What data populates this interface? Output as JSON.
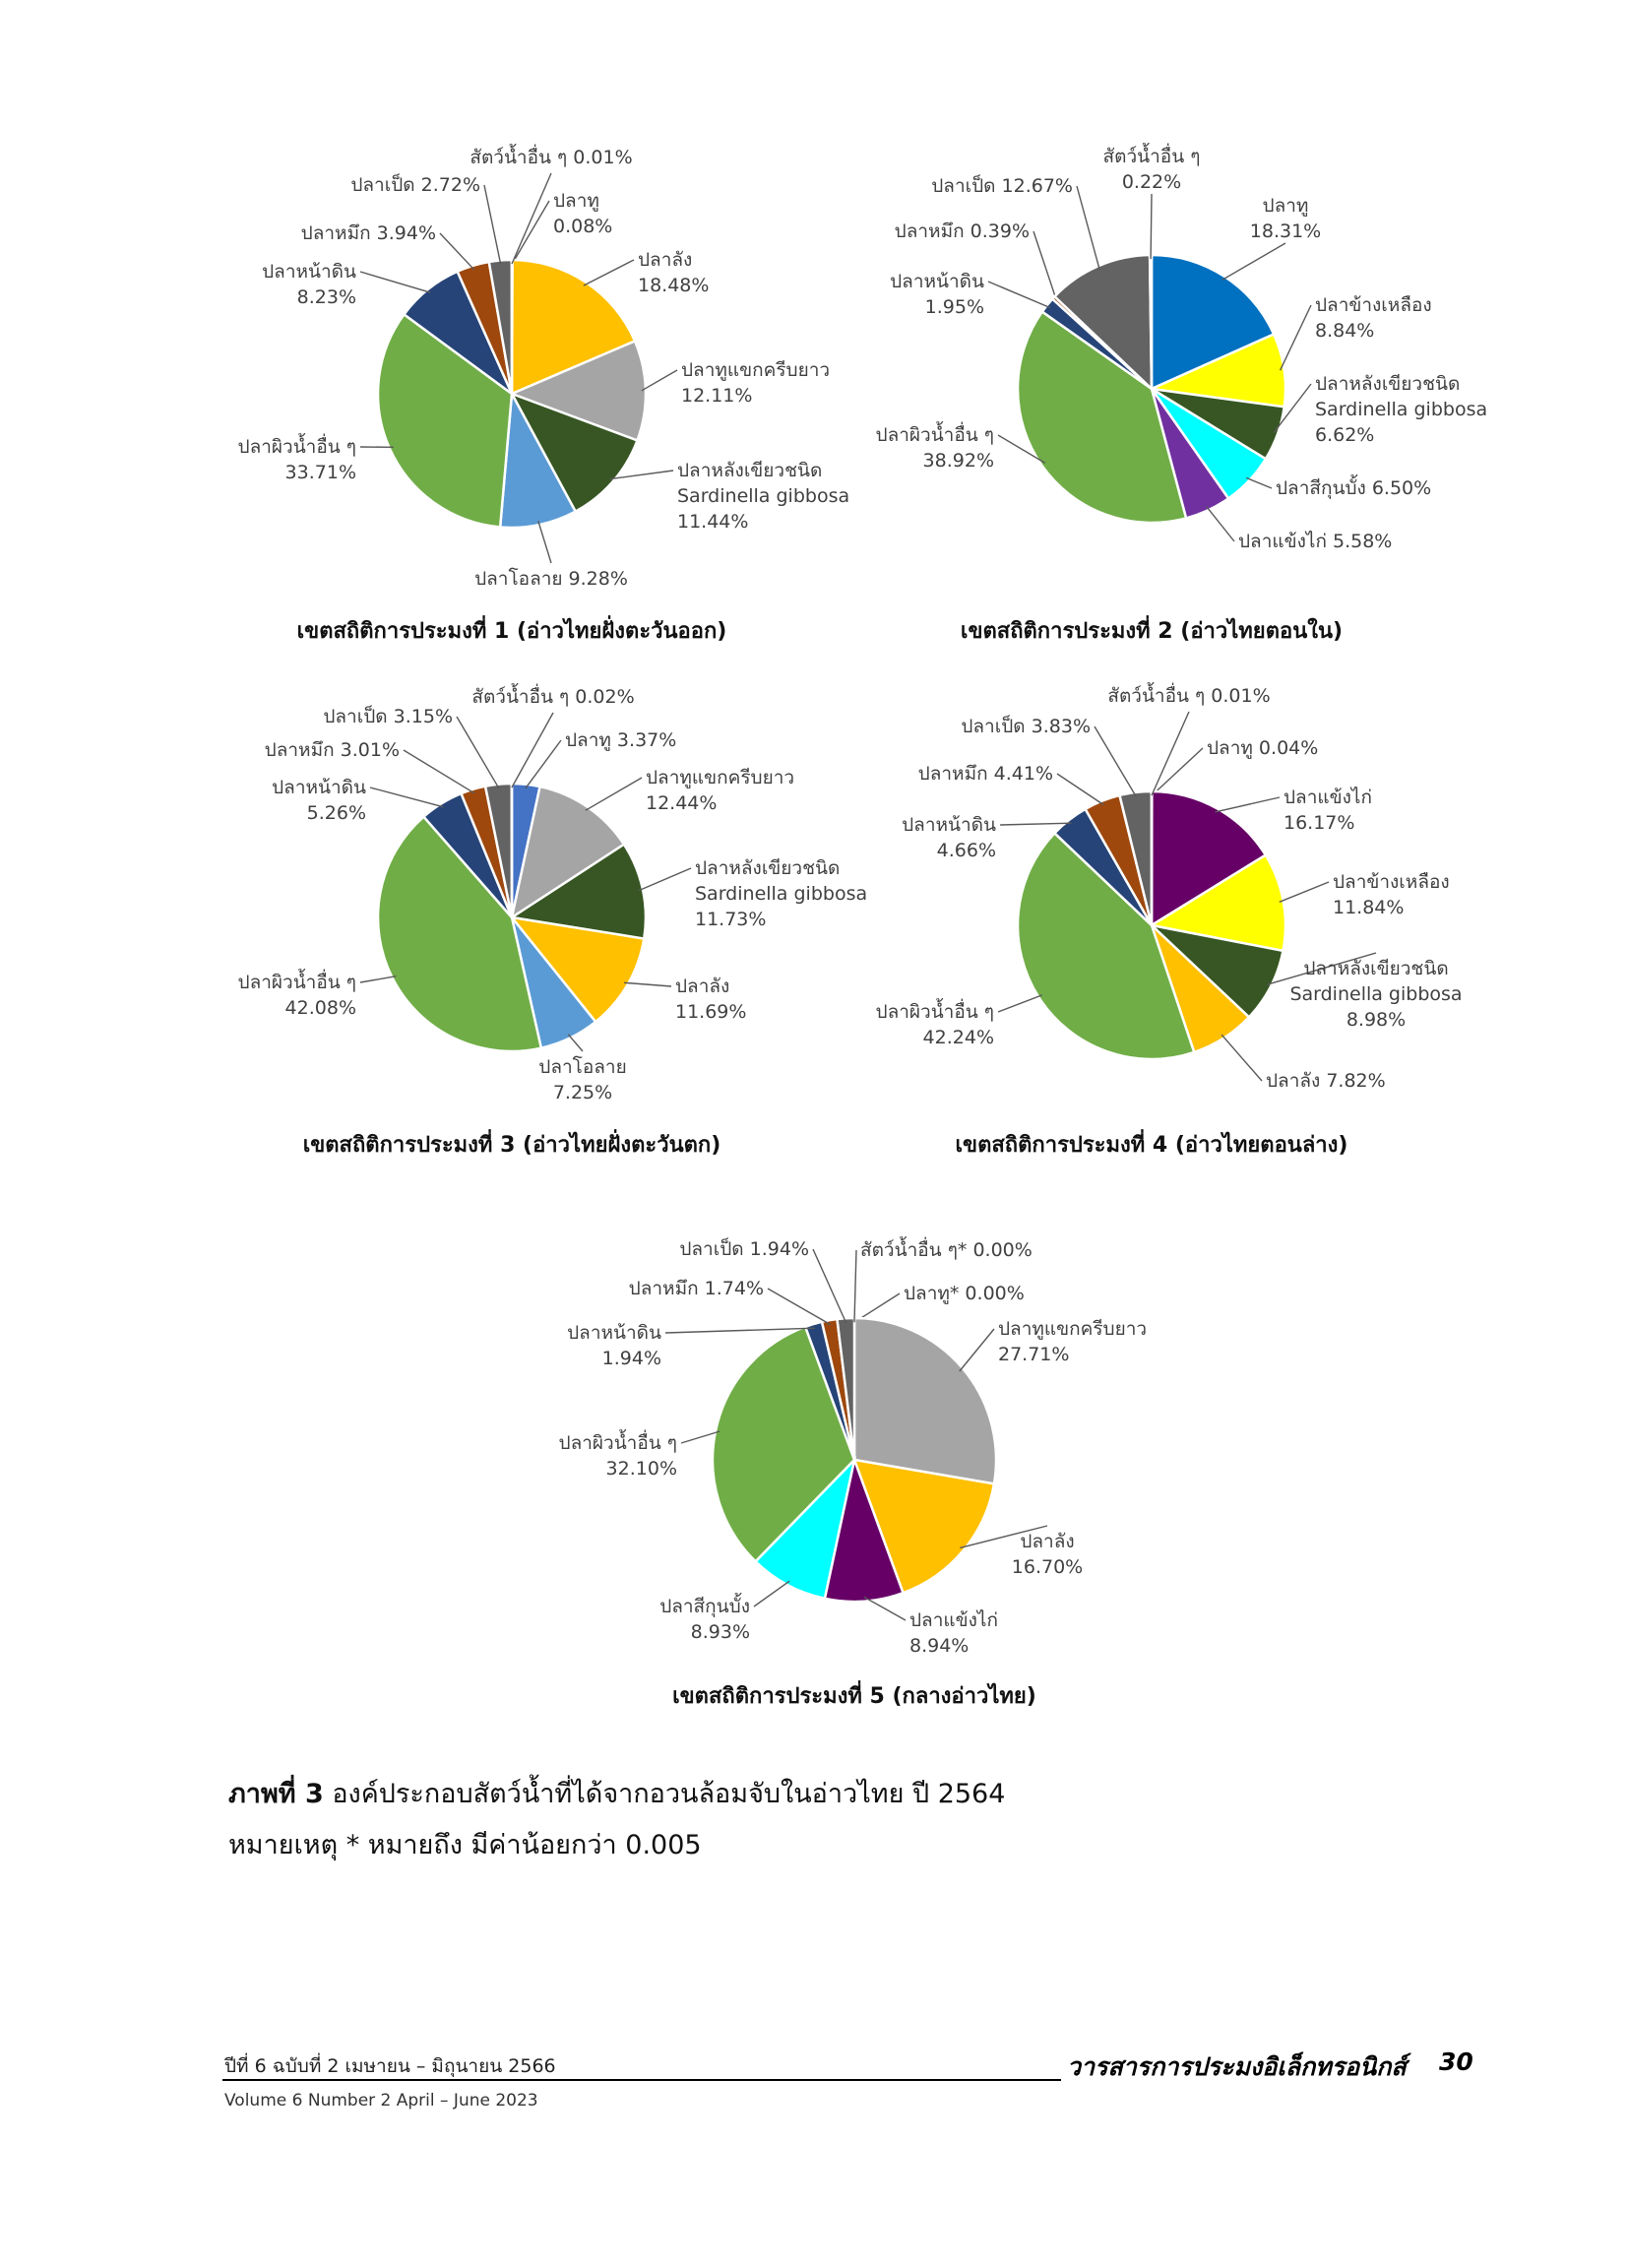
{
  "chart_data": [
    {
      "type": "pie",
      "title": "เขตสถิติการประมงที่ 1 (อ่าวไทยฝั่งตะวันออก)",
      "slices": [
        {
          "label": "ปลาทู",
          "value": 0.08,
          "pct": "0.08%",
          "color": "#4472C4"
        },
        {
          "label": "ปลาลัง",
          "value": 18.48,
          "pct": "18.48%",
          "color": "#FFC000"
        },
        {
          "label": "ปลาทูแขกครีบยาว",
          "value": 12.11,
          "pct": "12.11%",
          "color": "#A5A5A5"
        },
        {
          "label": "ปลาหลังเขียวชนิด Sardinella gibbosa",
          "value": 11.44,
          "pct": "11.44%",
          "color": "#375623"
        },
        {
          "label": "ปลาโอลาย",
          "value": 9.28,
          "pct": "9.28%",
          "color": "#5B9BD5"
        },
        {
          "label": "ปลาผิวน้ำอื่น ๆ",
          "value": 33.71,
          "pct": "33.71%",
          "color": "#70AD47"
        },
        {
          "label": "ปลาหน้าดิน",
          "value": 8.23,
          "pct": "8.23%",
          "color": "#264478"
        },
        {
          "label": "ปลาหมึก",
          "value": 3.94,
          "pct": "3.94%",
          "color": "#9E480E"
        },
        {
          "label": "ปลาเป็ด",
          "value": 2.72,
          "pct": "2.72%",
          "color": "#636363"
        },
        {
          "label": "สัตว์น้ำอื่น ๆ",
          "value": 0.01,
          "pct": "0.01%",
          "color": "#997300"
        }
      ]
    },
    {
      "type": "pie",
      "title": "เขตสถิติการประมงที่ 2 (อ่าวไทยตอนใน)",
      "slices": [
        {
          "label": "ปลาทู",
          "value": 18.31,
          "pct": "18.31%",
          "color": "#0070C0"
        },
        {
          "label": "ปลาข้างเหลือง",
          "value": 8.84,
          "pct": "8.84%",
          "color": "#FFFF00"
        },
        {
          "label": "ปลาหลังเขียวชนิด Sardinella gibbosa",
          "value": 6.62,
          "pct": "6.62%",
          "color": "#375623"
        },
        {
          "label": "ปลาสีกุนบั้ง",
          "value": 6.5,
          "pct": "6.50%",
          "color": "#00FFFF"
        },
        {
          "label": "ปลาแข้งไก่",
          "value": 5.58,
          "pct": "5.58%",
          "color": "#7030A0"
        },
        {
          "label": "ปลาผิวน้ำอื่น ๆ",
          "value": 38.92,
          "pct": "38.92%",
          "color": "#70AD47"
        },
        {
          "label": "ปลาหน้าดิน",
          "value": 1.95,
          "pct": "1.95%",
          "color": "#264478"
        },
        {
          "label": "ปลาหมึก",
          "value": 0.39,
          "pct": "0.39%",
          "color": "#9E480E"
        },
        {
          "label": "ปลาเป็ด",
          "value": 12.67,
          "pct": "12.67%",
          "color": "#636363"
        },
        {
          "label": "สัตว์น้ำอื่น ๆ",
          "value": 0.22,
          "pct": "0.22%",
          "color": "#997300"
        }
      ]
    },
    {
      "type": "pie",
      "title": "เขตสถิติการประมงที่ 3 (อ่าวไทยฝั่งตะวันตก)",
      "slices": [
        {
          "label": "ปลาทู",
          "value": 3.37,
          "pct": "3.37%",
          "color": "#4472C4"
        },
        {
          "label": "ปลาทูแขกครีบยาว",
          "value": 12.44,
          "pct": "12.44%",
          "color": "#A5A5A5"
        },
        {
          "label": "ปลาหลังเขียวชนิด Sardinella gibbosa",
          "value": 11.73,
          "pct": "11.73%",
          "color": "#375623"
        },
        {
          "label": "ปลาลัง",
          "value": 11.69,
          "pct": "11.69%",
          "color": "#FFC000"
        },
        {
          "label": "ปลาโอลาย",
          "value": 7.25,
          "pct": "7.25%",
          "color": "#5B9BD5"
        },
        {
          "label": "ปลาผิวน้ำอื่น ๆ",
          "value": 42.08,
          "pct": "42.08%",
          "color": "#70AD47"
        },
        {
          "label": "ปลาหน้าดิน",
          "value": 5.26,
          "pct": "5.26%",
          "color": "#264478"
        },
        {
          "label": "ปลาหมึก",
          "value": 3.01,
          "pct": "3.01%",
          "color": "#9E480E"
        },
        {
          "label": "ปลาเป็ด",
          "value": 3.15,
          "pct": "3.15%",
          "color": "#636363"
        },
        {
          "label": "สัตว์น้ำอื่น ๆ",
          "value": 0.02,
          "pct": "0.02%",
          "color": "#997300"
        }
      ]
    },
    {
      "type": "pie",
      "title": "เขตสถิติการประมงที่ 4 (อ่าวไทยตอนล่าง)",
      "slices": [
        {
          "label": "ปลาทู",
          "value": 0.04,
          "pct": "0.04%",
          "color": "#4472C4"
        },
        {
          "label": "ปลาแข้งไก่",
          "value": 16.17,
          "pct": "16.17%",
          "color": "#660066"
        },
        {
          "label": "ปลาข้างเหลือง",
          "value": 11.84,
          "pct": "11.84%",
          "color": "#FFFF00"
        },
        {
          "label": "ปลาหลังเขียวชนิด Sardinella gibbosa",
          "value": 8.98,
          "pct": "8.98%",
          "color": "#375623"
        },
        {
          "label": "ปลาลัง",
          "value": 7.82,
          "pct": "7.82%",
          "color": "#FFC000"
        },
        {
          "label": "ปลาผิวน้ำอื่น ๆ",
          "value": 42.24,
          "pct": "42.24%",
          "color": "#70AD47"
        },
        {
          "label": "ปลาหน้าดิน",
          "value": 4.66,
          "pct": "4.66%",
          "color": "#264478"
        },
        {
          "label": "ปลาหมึก",
          "value": 4.41,
          "pct": "4.41%",
          "color": "#9E480E"
        },
        {
          "label": "ปลาเป็ด",
          "value": 3.83,
          "pct": "3.83%",
          "color": "#636363"
        },
        {
          "label": "สัตว์น้ำอื่น ๆ",
          "value": 0.01,
          "pct": "0.01%",
          "color": "#997300"
        }
      ]
    },
    {
      "type": "pie",
      "title": "เขตสถิติการประมงที่ 5 (กลางอ่าวไทย)",
      "slices": [
        {
          "label": "ปลาทู*",
          "value": 0.0,
          "pct": "0.00%",
          "color": "#4472C4"
        },
        {
          "label": "ปลาทูแขกครีบยาว",
          "value": 27.71,
          "pct": "27.71%",
          "color": "#A5A5A5"
        },
        {
          "label": "ปลาลัง",
          "value": 16.7,
          "pct": "16.70%",
          "color": "#FFC000"
        },
        {
          "label": "ปลาแข้งไก่",
          "value": 8.94,
          "pct": "8.94%",
          "color": "#660066"
        },
        {
          "label": "ปลาสีกุนบั้ง",
          "value": 8.93,
          "pct": "8.93%",
          "color": "#00FFFF"
        },
        {
          "label": "ปลาผิวน้ำอื่น ๆ",
          "value": 32.1,
          "pct": "32.10%",
          "color": "#70AD47"
        },
        {
          "label": "ปลาหน้าดิน",
          "value": 1.94,
          "pct": "1.94%",
          "color": "#264478"
        },
        {
          "label": "ปลาหมึก",
          "value": 1.74,
          "pct": "1.74%",
          "color": "#9E480E"
        },
        {
          "label": "ปลาเป็ด",
          "value": 1.94,
          "pct": "1.94%",
          "color": "#636363"
        },
        {
          "label": "สัตว์น้ำอื่น ๆ*",
          "value": 0.0,
          "pct": "0.00%",
          "color": "#997300"
        }
      ]
    }
  ],
  "caption": {
    "figure_no": "ภาพที่ 3",
    "text": " องค์ประกอบสัตว์น้ำที่ได้จากอวนล้อมจับในอ่าวไทย ปี 2564",
    "note": "หมายเหตุ  * หมายถึง มีค่าน้อยกว่า 0.005"
  },
  "footer": {
    "issue_th": "ปีที่ 6 ฉบับที่ 2 เมษายน – มิถุนายน 2566",
    "issue_en": "Volume 6 Number 2 April – June 2023",
    "journal": "วารสารการประมงอิเล็กทรอนิกส์",
    "page": "30"
  }
}
